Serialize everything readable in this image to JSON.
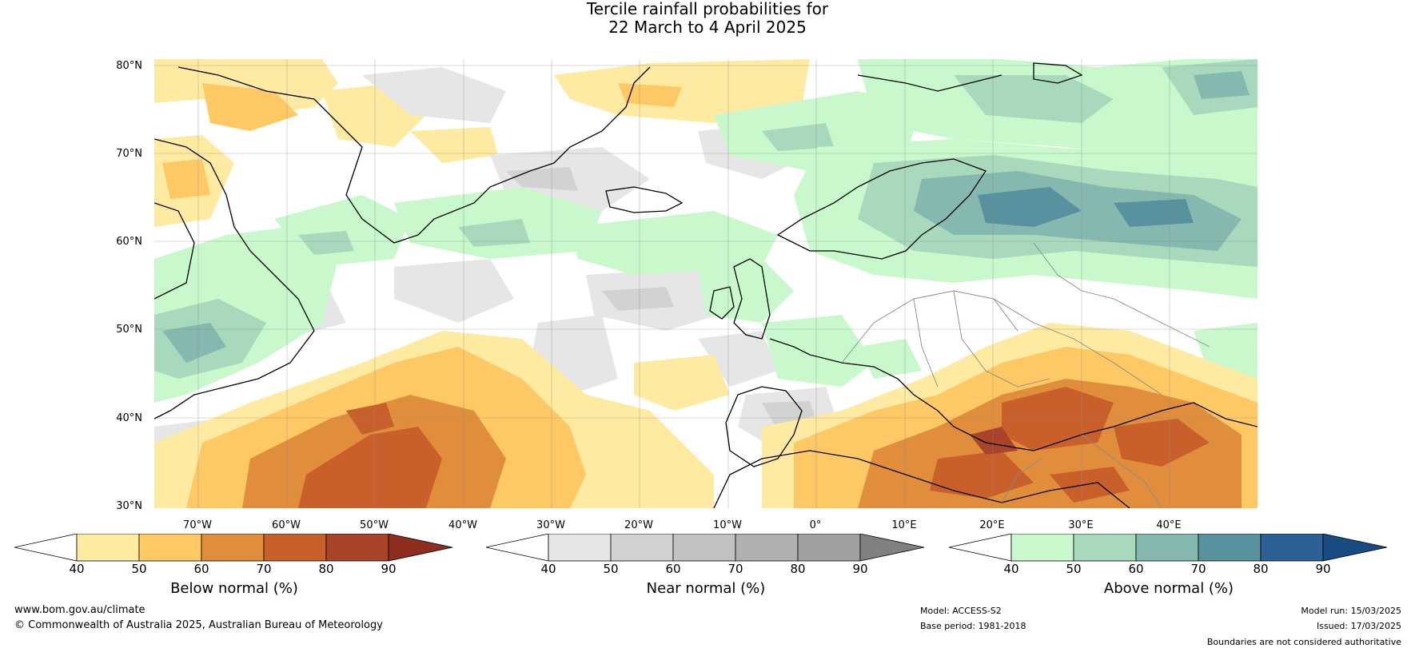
{
  "title": {
    "line1": "Tercile rainfall probabilities for",
    "line2": "22 March to 4 April 2025"
  },
  "map": {
    "latitude_labels": [
      "80°N",
      "70°N",
      "60°N",
      "50°N",
      "40°N",
      "30°N"
    ],
    "longitude_labels": [
      "70°W",
      "60°W",
      "50°W",
      "40°W",
      "30°W",
      "20°W",
      "10°W",
      "0°",
      "10°E",
      "20°E",
      "30°E",
      "40°E"
    ],
    "extent": {
      "lon": [
        -75,
        50
      ],
      "lat": [
        30,
        81
      ]
    }
  },
  "colorbars": [
    {
      "caption": "Below normal (%)",
      "ticks": [
        "40",
        "50",
        "60",
        "70",
        "80",
        "90"
      ],
      "colors": [
        "#ffffff",
        "#feeaa0",
        "#fec965",
        "#e08e3c",
        "#c9602b",
        "#a9442a",
        "#8f2d1f"
      ]
    },
    {
      "caption": "Near normal (%)",
      "ticks": [
        "40",
        "50",
        "60",
        "70",
        "80",
        "90"
      ],
      "colors": [
        "#ffffff",
        "#e6e6e6",
        "#d2d2d2",
        "#c1c1c1",
        "#b0b0b0",
        "#a0a0a0",
        "#808080"
      ]
    },
    {
      "caption": "Above normal (%)",
      "ticks": [
        "40",
        "50",
        "60",
        "70",
        "80",
        "90"
      ],
      "colors": [
        "#ffffff",
        "#c8f8cc",
        "#a8d9bc",
        "#85b8ae",
        "#5a919f",
        "#2e5f95",
        "#174b82"
      ]
    }
  ],
  "footer": {
    "url": "www.bom.gov.au/climate",
    "copyright": "© Commonwealth of Australia 2025, Australian Bureau of Meteorology",
    "model": "Model: ACCESS-S2",
    "base_period": "Base period: 1981-2018",
    "model_run": "Model run: 15/03/2025",
    "issued": "Issued: 17/03/2025",
    "disclaimer": "Boundaries are not considered authoritative"
  }
}
